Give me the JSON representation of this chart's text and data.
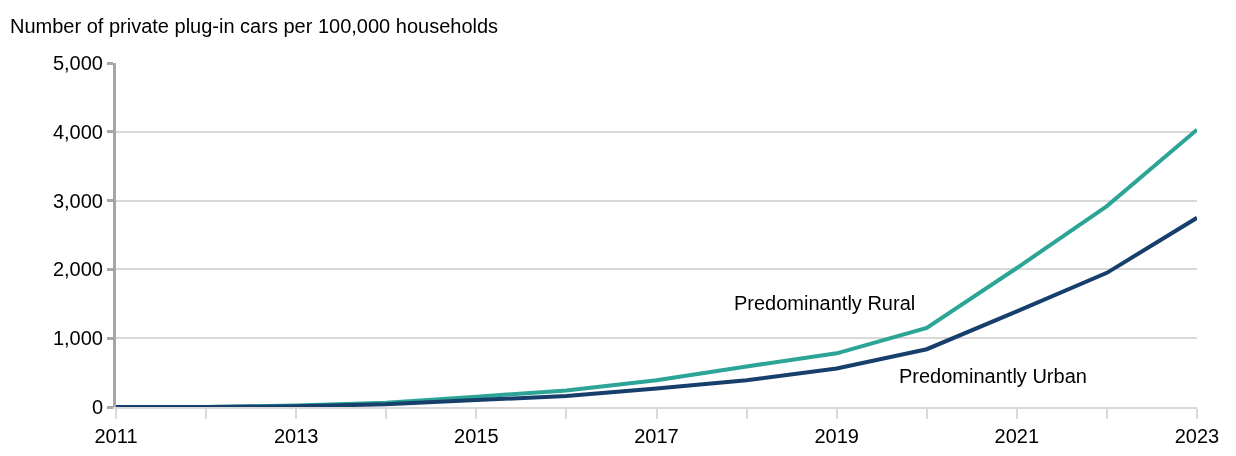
{
  "chart_data": {
    "type": "line",
    "ylabel": "Number of private plug-in cars per 100,000 households",
    "x": [
      2011,
      2012,
      2013,
      2014,
      2015,
      2016,
      2017,
      2018,
      2019,
      2020,
      2021,
      2022,
      2023
    ],
    "series": [
      {
        "name": "Predominantly Rural",
        "color": "#2ca597",
        "values": [
          0,
          0,
          20,
          60,
          150,
          240,
          390,
          590,
          780,
          1150,
          2020,
          2920,
          4030
        ]
      },
      {
        "name": "Predominantly Urban",
        "color": "#173f6b",
        "values": [
          0,
          0,
          10,
          40,
          100,
          160,
          270,
          390,
          560,
          840,
          1390,
          1950,
          2750
        ]
      }
    ],
    "xlim": [
      2011,
      2023
    ],
    "xticks": [
      2011,
      {
        "value": 2012,
        "label": null
      },
      2013,
      {
        "value": 2014,
        "label": null
      },
      2015,
      {
        "value": 2016,
        "label": null
      },
      2017,
      {
        "value": 2018,
        "label": null
      },
      2019,
      {
        "value": 2020,
        "label": null
      },
      2021,
      {
        "value": 2022,
        "label": null
      },
      2023
    ],
    "ylim": [
      0,
      5000
    ],
    "yticks": [
      {
        "value": 0,
        "label": "0"
      },
      {
        "value": 1000,
        "label": "1,000"
      },
      {
        "value": 2000,
        "label": "2,000"
      },
      {
        "value": 3000,
        "label": "3,000"
      },
      {
        "value": 4000,
        "label": "4,000"
      },
      {
        "value": 5000,
        "label": "5,000"
      }
    ],
    "grid": "y",
    "legend": false,
    "marker": "none",
    "line_style": "solid"
  }
}
